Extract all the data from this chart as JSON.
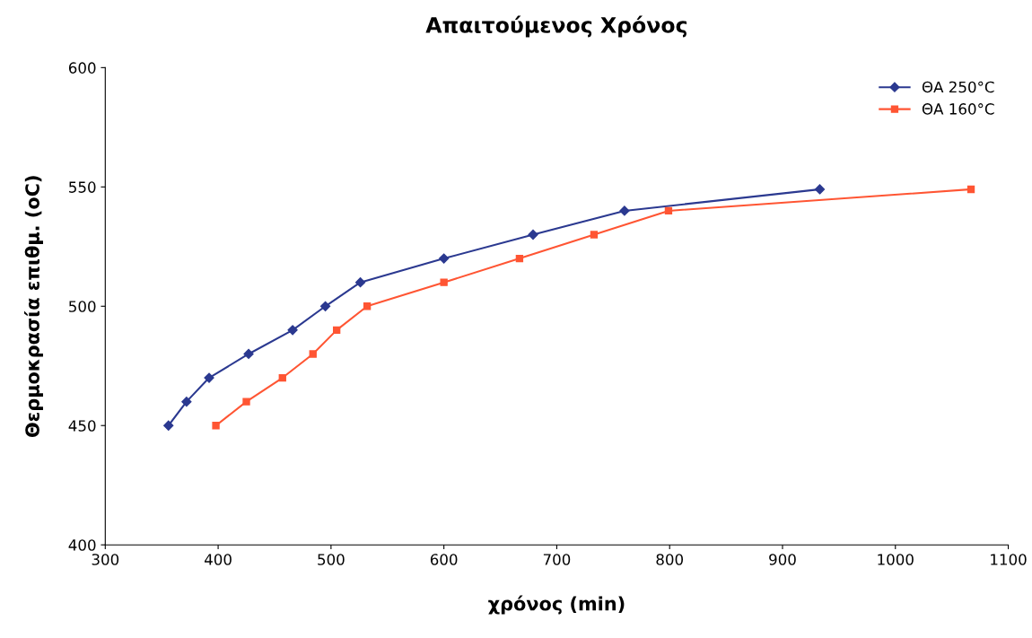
{
  "chart_data": {
    "type": "line",
    "title": "Απαιτούμενος Χρόνος",
    "xlabel": "χρόνος (min)",
    "ylabel": "Θερμοκρασία επιθμ. (oC)",
    "series": [
      {
        "name": "ΘΑ 250°C",
        "color": "#2b3990",
        "marker": "diamond",
        "x": [
          356,
          372,
          392,
          427,
          466,
          495,
          526,
          600,
          679,
          760,
          933
        ],
        "values": [
          450,
          460,
          470,
          480,
          490,
          500,
          510,
          520,
          530,
          540,
          549
        ]
      },
      {
        "name": "ΘΑ 160°C",
        "color": "#ff5533",
        "marker": "square",
        "x": [
          398,
          425,
          457,
          484,
          505,
          532,
          600,
          667,
          733,
          799,
          1067
        ],
        "values": [
          450,
          460,
          470,
          480,
          490,
          500,
          510,
          520,
          530,
          540,
          549
        ]
      }
    ],
    "xlim": [
      300,
      1100
    ],
    "xticks": [
      300,
      400,
      500,
      600,
      700,
      800,
      900,
      1000,
      1100
    ],
    "ylim": [
      400,
      600
    ],
    "yticks": [
      400,
      450,
      500,
      550,
      600
    ],
    "grid": false,
    "legend": "top right",
    "line_style": "solid"
  }
}
